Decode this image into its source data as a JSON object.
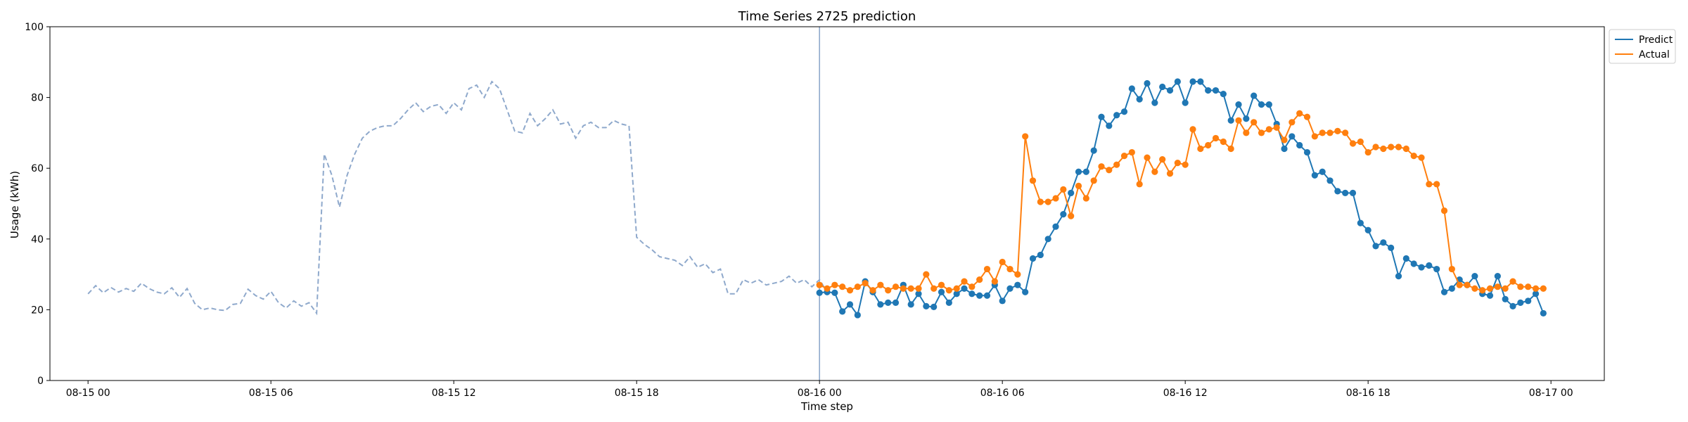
{
  "chart_data": {
    "type": "line",
    "title": "Time Series 2725 prediction",
    "xlabel": "Time step",
    "ylabel": "Usage (kWh)",
    "ylim": [
      0,
      100
    ],
    "xlim": [
      "08-14 22:45",
      "08-17 01:45"
    ],
    "x_tick_labels": [
      "08-15 00",
      "08-15 06",
      "08-15 12",
      "08-15 18",
      "08-16 00",
      "08-16 06",
      "08-16 12",
      "08-16 18",
      "08-17 00"
    ],
    "x_tick_values": [
      "08-15 00:00",
      "08-15 06:00",
      "08-15 12:00",
      "08-15 18:00",
      "08-16 00:00",
      "08-16 06:00",
      "08-16 12:00",
      "08-16 18:00",
      "08-17 00:00"
    ],
    "y_ticks": [
      0,
      20,
      40,
      60,
      80,
      100
    ],
    "vline": "08-16 00:00",
    "legend_position": "top-right (outside)",
    "history": {
      "style": "dashed",
      "color": "#8fa9cc",
      "start": "08-15 00:00",
      "interval_minutes": 15,
      "values": [
        24.5,
        26.8,
        24.8,
        26.3,
        25.0,
        26.0,
        25.2,
        27.5,
        26.0,
        25.0,
        24.5,
        26.2,
        23.5,
        26.0,
        21.8,
        20.0,
        20.5,
        20.0,
        19.8,
        21.5,
        21.8,
        25.8,
        24.0,
        23.0,
        25.2,
        22.0,
        20.5,
        22.5,
        21.0,
        22.0,
        19.0,
        64.0,
        58.0,
        49.0,
        58.0,
        64.0,
        68.5,
        70.5,
        71.5,
        72.0,
        72.0,
        74.0,
        76.5,
        78.5,
        76.0,
        77.5,
        78.0,
        75.5,
        78.5,
        76.5,
        82.5,
        83.5,
        80.0,
        84.5,
        82.5,
        76.5,
        70.5,
        70.0,
        75.5,
        72.0,
        74.0,
        76.5,
        72.5,
        73.0,
        68.5,
        72.0,
        73.0,
        71.5,
        71.5,
        73.5,
        72.5,
        72.0,
        40.5,
        38.5,
        37.0,
        35.0,
        34.5,
        34.0,
        32.5,
        35.0,
        32.0,
        33.0,
        30.5,
        31.5,
        24.5,
        24.5,
        28.5,
        27.5,
        28.5,
        27.0,
        27.5,
        28.0,
        29.5,
        27.5,
        28.5,
        26.5,
        28.5,
        25.0
      ]
    },
    "series": [
      {
        "name": "Predict",
        "color": "#1f77b4",
        "start": "08-16 00:00",
        "interval_minutes": 15,
        "values": [
          24.8,
          25.0,
          24.8,
          19.5,
          21.5,
          18.5,
          28.0,
          25.0,
          21.5,
          22.0,
          22.0,
          27.0,
          21.5,
          24.5,
          21.0,
          20.8,
          25.0,
          22.0,
          24.5,
          26.0,
          24.5,
          24.0,
          24.0,
          27.0,
          22.5,
          26.0,
          27.0,
          25.0,
          34.5,
          35.5,
          40.0,
          43.5,
          47.0,
          53.0,
          59.0,
          59.0,
          65.0,
          74.5,
          72.0,
          75.0,
          76.0,
          82.5,
          79.5,
          84.0,
          78.5,
          83.0,
          82.0,
          84.5,
          78.5,
          84.5,
          84.5,
          82.0,
          82.0,
          81.0,
          73.5,
          78.0,
          74.0,
          80.5,
          78.0,
          78.0,
          72.5,
          65.5,
          69.0,
          66.5,
          64.5,
          58.0,
          59.0,
          56.5,
          53.5,
          53.0,
          53.0,
          44.5,
          42.5,
          38.0,
          39.0,
          37.5,
          29.5,
          34.5,
          33.0,
          32.0,
          32.5,
          31.5,
          25.0,
          26.0,
          28.5,
          27.0,
          29.5,
          24.5,
          24.0,
          29.5,
          23.0,
          21.0,
          22.0,
          22.5,
          24.5,
          19.0
        ]
      },
      {
        "name": "Actual",
        "color": "#ff7f0e",
        "start": "08-16 00:00",
        "interval_minutes": 15,
        "values": [
          27.0,
          26.0,
          27.0,
          26.5,
          25.5,
          26.5,
          27.5,
          25.5,
          27.0,
          25.5,
          26.5,
          26.0,
          26.0,
          26.0,
          30.0,
          26.0,
          27.0,
          25.5,
          26.0,
          28.0,
          26.5,
          28.5,
          31.5,
          28.0,
          33.5,
          31.5,
          30.0,
          69.0,
          56.5,
          50.5,
          50.5,
          51.5,
          54.0,
          46.5,
          55.0,
          51.5,
          56.5,
          60.5,
          59.5,
          61.0,
          63.5,
          64.5,
          55.5,
          63.0,
          59.0,
          62.5,
          58.5,
          61.5,
          61.0,
          71.0,
          65.5,
          66.5,
          68.5,
          67.5,
          65.5,
          73.5,
          70.0,
          73.0,
          70.0,
          71.0,
          71.5,
          68.0,
          73.0,
          75.5,
          74.5,
          69.0,
          70.0,
          70.0,
          70.5,
          70.0,
          67.0,
          67.5,
          64.5,
          66.0,
          65.5,
          66.0,
          66.0,
          65.5,
          63.5,
          63.0,
          55.5,
          55.5,
          48.0,
          31.5,
          27.0,
          27.0,
          26.0,
          25.5,
          26.0,
          26.5,
          26.0,
          28.0,
          26.5,
          26.5,
          26.0,
          26.0
        ]
      }
    ]
  }
}
